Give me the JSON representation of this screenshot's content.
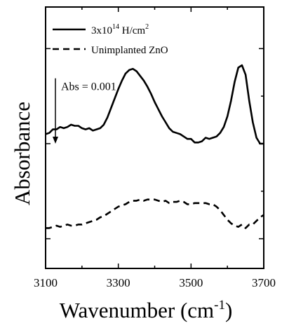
{
  "chart_data": {
    "type": "line",
    "xlabel_main": "Wavenumber (cm",
    "xlabel_sup": "-1",
    "xlabel_close": ")",
    "ylabel": "Absorbance",
    "xlim": [
      3100,
      3700
    ],
    "x_ticks": [
      "3100",
      "3300",
      "3500",
      "3700"
    ],
    "grid": false,
    "legend_position": "top-left",
    "series": [
      {
        "name_prefix": "3x10",
        "name_sup": "14",
        "name_unit": " H/cm",
        "name_unit_sup": "2",
        "style": "solid",
        "color": "#000000",
        "x": [
          3100,
          3110,
          3120,
          3130,
          3140,
          3150,
          3160,
          3170,
          3180,
          3190,
          3200,
          3210,
          3220,
          3230,
          3240,
          3250,
          3260,
          3270,
          3280,
          3290,
          3300,
          3310,
          3320,
          3330,
          3340,
          3350,
          3360,
          3370,
          3380,
          3390,
          3400,
          3410,
          3420,
          3430,
          3440,
          3450,
          3460,
          3470,
          3480,
          3490,
          3500,
          3510,
          3520,
          3530,
          3540,
          3550,
          3560,
          3570,
          3580,
          3590,
          3600,
          3610,
          3620,
          3630,
          3640,
          3650,
          3660,
          3670,
          3680,
          3690,
          3700
        ],
        "y": [
          0.58,
          0.59,
          0.62,
          0.62,
          0.64,
          0.63,
          0.64,
          0.66,
          0.65,
          0.65,
          0.63,
          0.62,
          0.63,
          0.61,
          0.62,
          0.63,
          0.66,
          0.72,
          0.8,
          0.88,
          0.96,
          1.03,
          1.09,
          1.12,
          1.13,
          1.11,
          1.07,
          1.03,
          0.98,
          0.92,
          0.85,
          0.79,
          0.73,
          0.68,
          0.63,
          0.6,
          0.59,
          0.58,
          0.56,
          0.54,
          0.54,
          0.51,
          0.51,
          0.52,
          0.55,
          0.54,
          0.55,
          0.56,
          0.59,
          0.64,
          0.73,
          0.86,
          1.02,
          1.14,
          1.16,
          1.08,
          0.86,
          0.68,
          0.55,
          0.5,
          0.5
        ]
      },
      {
        "name": "Unimplanted ZnO",
        "style": "dashed",
        "color": "#000000",
        "x": [
          3100,
          3110,
          3120,
          3130,
          3140,
          3150,
          3160,
          3170,
          3180,
          3190,
          3200,
          3210,
          3220,
          3230,
          3240,
          3250,
          3260,
          3270,
          3280,
          3290,
          3300,
          3310,
          3320,
          3330,
          3340,
          3350,
          3360,
          3370,
          3380,
          3390,
          3400,
          3410,
          3420,
          3430,
          3440,
          3450,
          3460,
          3470,
          3480,
          3490,
          3500,
          3510,
          3520,
          3530,
          3540,
          3550,
          3560,
          3570,
          3580,
          3590,
          3600,
          3610,
          3620,
          3630,
          3640,
          3650,
          3660,
          3670,
          3680,
          3690,
          3700
        ],
        "y": [
          -0.21,
          -0.21,
          -0.2,
          -0.19,
          -0.2,
          -0.19,
          -0.18,
          -0.19,
          -0.19,
          -0.18,
          -0.18,
          -0.17,
          -0.16,
          -0.15,
          -0.14,
          -0.12,
          -0.11,
          -0.09,
          -0.07,
          -0.05,
          -0.03,
          -0.02,
          -0.01,
          0.01,
          0.02,
          0.02,
          0.03,
          0.02,
          0.03,
          0.03,
          0.03,
          0.02,
          0.01,
          0.02,
          0.0,
          0.01,
          0.01,
          0.02,
          0.01,
          -0.01,
          -0.01,
          0.0,
          0.0,
          0.0,
          0.0,
          -0.01,
          -0.01,
          -0.03,
          -0.06,
          -0.1,
          -0.14,
          -0.17,
          -0.19,
          -0.2,
          -0.18,
          -0.21,
          -0.18,
          -0.18,
          -0.15,
          -0.12,
          -0.1
        ]
      }
    ],
    "annotation": {
      "text": "Abs = 0.001",
      "arrow_from_y": 1.05,
      "arrow_to_y": 0.5,
      "arrow_x": 3127
    },
    "ylim": [
      -0.55,
      1.65
    ],
    "y_ticks": [
      -0.3,
      0.5,
      1.3
    ],
    "x_minor_ticks": [
      3200,
      3400,
      3600
    ]
  }
}
